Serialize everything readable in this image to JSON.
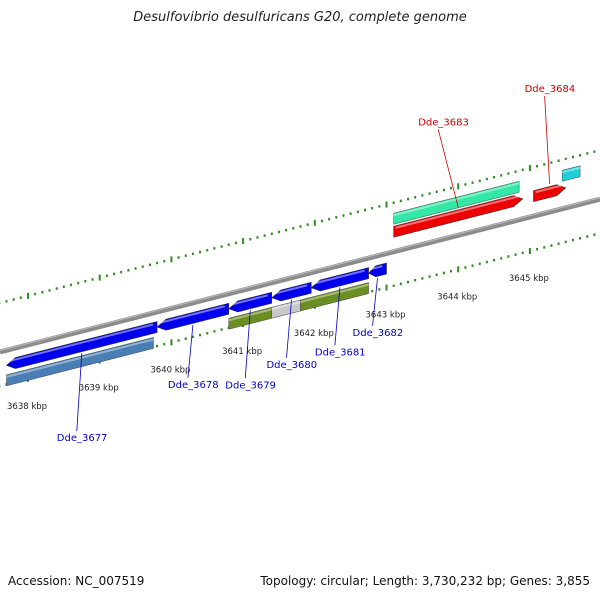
{
  "header": {
    "title": "Desulfovibrio desulfuricans G20, complete genome"
  },
  "footer": {
    "accession": "Accession: NC_007519",
    "summary": "Topology: circular; Length: 3,730,232 bp; Genes: 3,855"
  },
  "colors": {
    "backbone": "#8c8c8c",
    "tick": "#2e8b1e",
    "forward_label": "#cc0000",
    "reverse_label": "#0000cc",
    "scale_text": "#222222"
  },
  "scale_labels": [
    "3638 kbp",
    "3639 kbp",
    "3640 kbp",
    "3641 kbp",
    "3642 kbp",
    "3643 kbp",
    "3644 kbp",
    "3645 kbp"
  ],
  "genes": [
    {
      "id": "Dde_3677",
      "strand": "reverse",
      "color": "#0000ee",
      "start_kbp": 3637.7,
      "end_kbp": 3639.8
    },
    {
      "id": "Dde_3678",
      "strand": "reverse",
      "color": "#0000ee",
      "start_kbp": 3639.8,
      "end_kbp": 3640.8
    },
    {
      "id": "Dde_3679",
      "strand": "reverse",
      "color": "#0000ee",
      "start_kbp": 3640.8,
      "end_kbp": 3641.4
    },
    {
      "id": "Dde_3680",
      "strand": "reverse",
      "color": "#0000ee",
      "start_kbp": 3641.4,
      "end_kbp": 3641.95
    },
    {
      "id": "Dde_3681",
      "strand": "reverse",
      "color": "#0000ee",
      "start_kbp": 3641.95,
      "end_kbp": 3642.75
    },
    {
      "id": "Dde_3682",
      "strand": "reverse",
      "color": "#0000ee",
      "start_kbp": 3642.75,
      "end_kbp": 3643.0
    },
    {
      "id": "Dde_3683",
      "strand": "forward",
      "color": "#ee0000",
      "start_kbp": 3643.1,
      "end_kbp": 3644.9
    },
    {
      "id": "Dde_3684",
      "strand": "forward",
      "color": "#ee0000",
      "start_kbp": 3645.05,
      "end_kbp": 3645.5
    }
  ],
  "features": [
    {
      "track": "forward_feature",
      "color": "#33e8a6",
      "start_kbp": 3643.1,
      "end_kbp": 3644.85
    },
    {
      "track": "forward_feature",
      "color": "#22cfd8",
      "start_kbp": 3645.45,
      "end_kbp": 3645.7
    },
    {
      "track": "reverse_feature",
      "color": "#4a7fb5",
      "start_kbp": 3637.7,
      "end_kbp": 3639.75
    },
    {
      "track": "reverse_feature",
      "color": "#6b8e23",
      "start_kbp": 3640.8,
      "end_kbp": 3641.4
    },
    {
      "track": "reverse_feature",
      "color": "#c8c8c8",
      "start_kbp": 3641.4,
      "end_kbp": 3641.8
    },
    {
      "track": "reverse_feature",
      "color": "#6b8e23",
      "start_kbp": 3641.8,
      "end_kbp": 3642.75
    }
  ]
}
